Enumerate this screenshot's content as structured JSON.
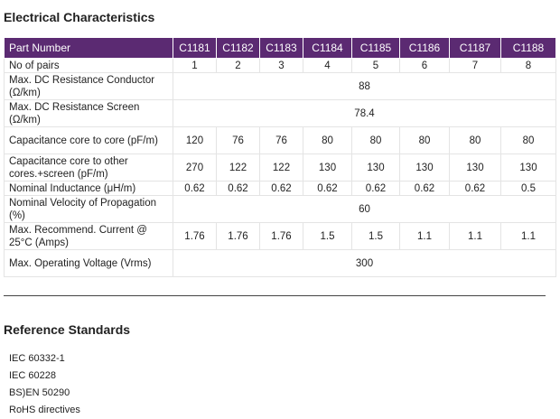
{
  "electrical": {
    "title": "Electrical Characteristics",
    "header": {
      "part_number_label": "Part Number",
      "columns": [
        "C1181",
        "C1182",
        "C1183",
        "C1184",
        "C1185",
        "C1186",
        "C1187",
        "C1188"
      ]
    },
    "rows": [
      {
        "label": "No of pairs",
        "values": [
          "1",
          "2",
          "3",
          "4",
          "5",
          "6",
          "7",
          "8"
        ]
      },
      {
        "label": "Max. DC Resistance Conductor (Ω/km)",
        "value": "88"
      },
      {
        "label": "Max. DC Resistance Screen (Ω/km)",
        "value": "78.4"
      },
      {
        "label": "Capacitance core to core (pF/m)",
        "values": [
          "120",
          "76",
          "76",
          "80",
          "80",
          "80",
          "80",
          "80"
        ]
      },
      {
        "label": "Capacitance core to other cores.+screen (pF/m)",
        "values": [
          "270",
          "122",
          "122",
          "130",
          "130",
          "130",
          "130",
          "130"
        ]
      },
      {
        "label": "Nominal Inductance (μH/m)",
        "values": [
          "0.62",
          "0.62",
          "0.62",
          "0.62",
          "0.62",
          "0.62",
          "0.62",
          "0.5"
        ]
      },
      {
        "label": "Nominal Velocity of Propagation (%)",
        "value": "60"
      },
      {
        "label": "Max. Recommend. Current @ 25°C (Amps)",
        "values": [
          "1.76",
          "1.76",
          "1.76",
          "1.5",
          "1.5",
          "1.1",
          "1.1",
          "1.1"
        ]
      },
      {
        "label": "Max. Operating Voltage (Vrms)",
        "value": "300"
      }
    ]
  },
  "reference": {
    "title": "Reference Standards",
    "items": [
      "IEC 60332-1",
      "IEC 60228",
      "BS)EN 50290",
      "RoHS directives"
    ]
  },
  "colors": {
    "header_bg": "#5b2a72",
    "header_text": "#ffffff",
    "grid": "#e4e4e4",
    "text": "#222222"
  }
}
